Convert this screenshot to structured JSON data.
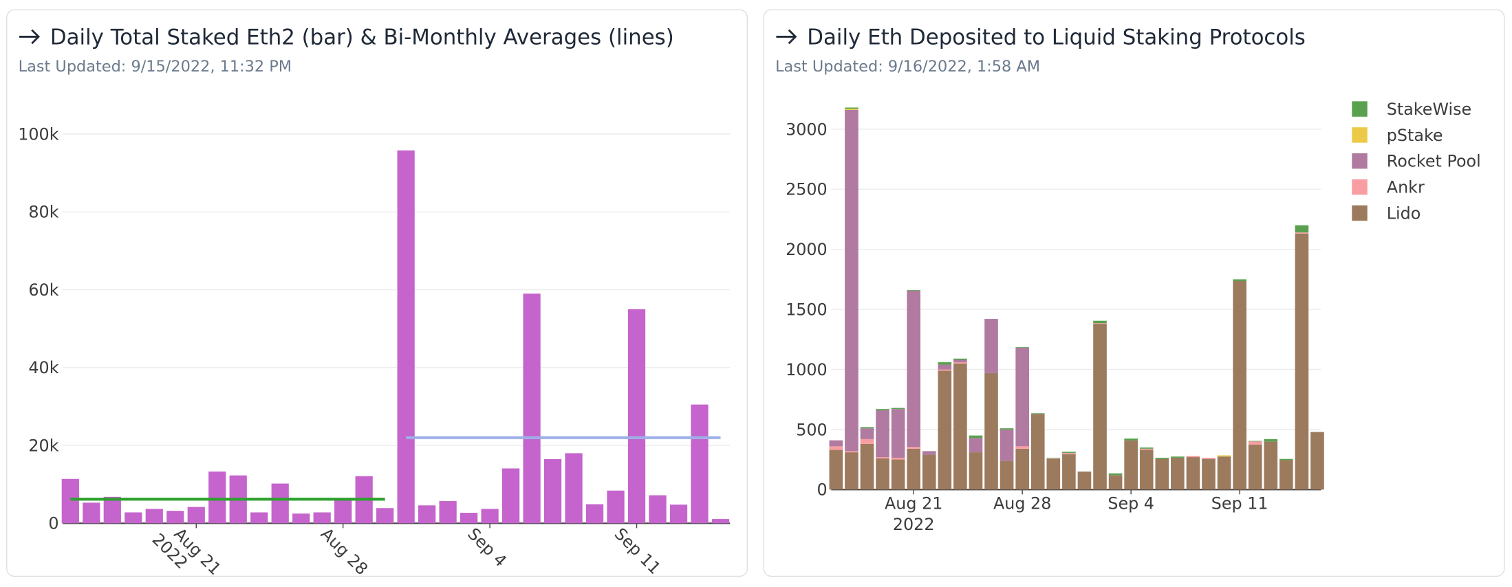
{
  "chart_data": [
    {
      "type": "bar",
      "title": "Daily Total Staked Eth2 (bar) & Bi-Monthly Averages (lines)",
      "subtitle": "Last Updated: 9/15/2022, 11:32 PM",
      "categories": [
        "2022-08-15",
        "2022-08-16",
        "2022-08-17",
        "2022-08-18",
        "2022-08-19",
        "2022-08-20",
        "2022-08-21",
        "2022-08-22",
        "2022-08-23",
        "2022-08-24",
        "2022-08-25",
        "2022-08-26",
        "2022-08-27",
        "2022-08-28",
        "2022-08-29",
        "2022-08-30",
        "2022-08-31",
        "2022-09-01",
        "2022-09-02",
        "2022-09-03",
        "2022-09-04",
        "2022-09-05",
        "2022-09-06",
        "2022-09-07",
        "2022-09-08",
        "2022-09-09",
        "2022-09-10",
        "2022-09-11",
        "2022-09-12",
        "2022-09-13",
        "2022-09-14",
        "2022-09-15"
      ],
      "values": [
        11400,
        5300,
        6800,
        2800,
        3700,
        3200,
        4200,
        13300,
        12300,
        2800,
        10200,
        2500,
        2800,
        6500,
        12100,
        3900,
        95800,
        4600,
        5700,
        2700,
        3700,
        14100,
        59000,
        16500,
        18000,
        4900,
        8400,
        55000,
        7200,
        4800,
        30500,
        1100
      ],
      "color": "#c464cc",
      "lines": [
        {
          "color": "#2ca02c",
          "values": [
            6200,
            6200,
            6200,
            6200,
            6200,
            6200,
            6200,
            6200,
            6200,
            6200,
            6200,
            6200,
            6200,
            6200,
            6200,
            6200,
            null,
            null,
            null,
            null,
            null,
            null,
            null,
            null,
            null,
            null,
            null,
            null,
            null,
            null,
            null,
            null
          ]
        },
        {
          "color": "#9fb0e8",
          "values": [
            null,
            null,
            null,
            null,
            null,
            null,
            null,
            null,
            null,
            null,
            null,
            null,
            null,
            null,
            null,
            null,
            22000,
            22000,
            22000,
            22000,
            22000,
            22000,
            22000,
            22000,
            22000,
            22000,
            22000,
            22000,
            22000,
            22000,
            22000,
            22000
          ]
        }
      ],
      "ylim": [
        0,
        100000
      ],
      "yticks": [
        0,
        {
          "value": 20000,
          "label": "20k"
        },
        {
          "value": 40000,
          "label": "40k"
        },
        {
          "value": 60000,
          "label": "60k"
        },
        {
          "value": 80000,
          "label": "80k"
        },
        {
          "value": 100000,
          "label": "100k"
        }
      ],
      "xticks": [
        {
          "value": "2022-08-21",
          "label": [
            "Aug 21",
            "2022"
          ]
        },
        {
          "value": "2022-08-28",
          "label": [
            "Aug 28"
          ]
        },
        {
          "value": "2022-09-04",
          "label": [
            "Sep 4"
          ]
        },
        {
          "value": "2022-09-11",
          "label": [
            "Sep 11"
          ]
        }
      ],
      "grid": true
    },
    {
      "type": "stacked_bar",
      "title": "Daily Eth Deposited to Liquid Staking Protocols",
      "subtitle": "Last Updated: 9/16/2022, 1:58 AM",
      "categories": [
        "2022-08-16",
        "2022-08-17",
        "2022-08-18",
        "2022-08-19",
        "2022-08-20",
        "2022-08-21",
        "2022-08-22",
        "2022-08-23",
        "2022-08-24",
        "2022-08-25",
        "2022-08-26",
        "2022-08-27",
        "2022-08-28",
        "2022-08-29",
        "2022-08-30",
        "2022-08-31",
        "2022-09-01",
        "2022-09-02",
        "2022-09-03",
        "2022-09-04",
        "2022-09-05",
        "2022-09-06",
        "2022-09-07",
        "2022-09-08",
        "2022-09-09",
        "2022-09-10",
        "2022-09-11",
        "2022-09-12",
        "2022-09-13",
        "2022-09-14",
        "2022-09-15",
        "2022-09-16"
      ],
      "series": [
        {
          "name": "Lido",
          "color": "#9c7a5e",
          "values": [
            330,
            310,
            380,
            260,
            250,
            340,
            290,
            990,
            1050,
            310,
            970,
            240,
            340,
            630,
            255,
            295,
            150,
            1380,
            120,
            410,
            330,
            255,
            265,
            270,
            255,
            275,
            1735,
            375,
            400,
            245,
            2130,
            480
          ]
        },
        {
          "name": "Ankr",
          "color": "#f89da2",
          "values": [
            30,
            10,
            40,
            10,
            15,
            15,
            0,
            10,
            10,
            0,
            0,
            0,
            20,
            0,
            5,
            10,
            0,
            5,
            0,
            0,
            10,
            0,
            0,
            10,
            10,
            0,
            0,
            25,
            0,
            0,
            10,
            0
          ]
        },
        {
          "name": "Rocket Pool",
          "color": "#b07aa1",
          "values": [
            50,
            2840,
            90,
            390,
            405,
            1300,
            30,
            40,
            20,
            120,
            450,
            260,
            820,
            0,
            0,
            0,
            0,
            0,
            0,
            0,
            0,
            0,
            0,
            0,
            0,
            0,
            0,
            0,
            0,
            0,
            0,
            0
          ]
        },
        {
          "name": "pStake",
          "color": "#edc948",
          "values": [
            0,
            10,
            0,
            0,
            0,
            0,
            0,
            0,
            0,
            0,
            0,
            0,
            0,
            0,
            0,
            0,
            0,
            0,
            0,
            0,
            0,
            0,
            0,
            0,
            0,
            10,
            0,
            0,
            0,
            0,
            0,
            0
          ]
        },
        {
          "name": "StakeWise",
          "color": "#59a14f",
          "values": [
            0,
            10,
            10,
            10,
            10,
            5,
            0,
            20,
            10,
            20,
            0,
            10,
            5,
            5,
            5,
            10,
            0,
            20,
            15,
            15,
            10,
            10,
            10,
            0,
            0,
            0,
            15,
            5,
            20,
            10,
            60,
            0
          ]
        }
      ],
      "ylim": [
        0,
        3200
      ],
      "yticks": [
        0,
        500,
        1000,
        1500,
        2000,
        2500,
        3000
      ],
      "xticks": [
        {
          "value": "2022-08-21",
          "label": [
            "Aug 21",
            "2022"
          ]
        },
        {
          "value": "2022-08-28",
          "label": [
            "Aug 28"
          ]
        },
        {
          "value": "2022-09-04",
          "label": [
            "Sep 4"
          ]
        },
        {
          "value": "2022-09-11",
          "label": [
            "Sep 11"
          ]
        }
      ],
      "grid": true
    }
  ]
}
